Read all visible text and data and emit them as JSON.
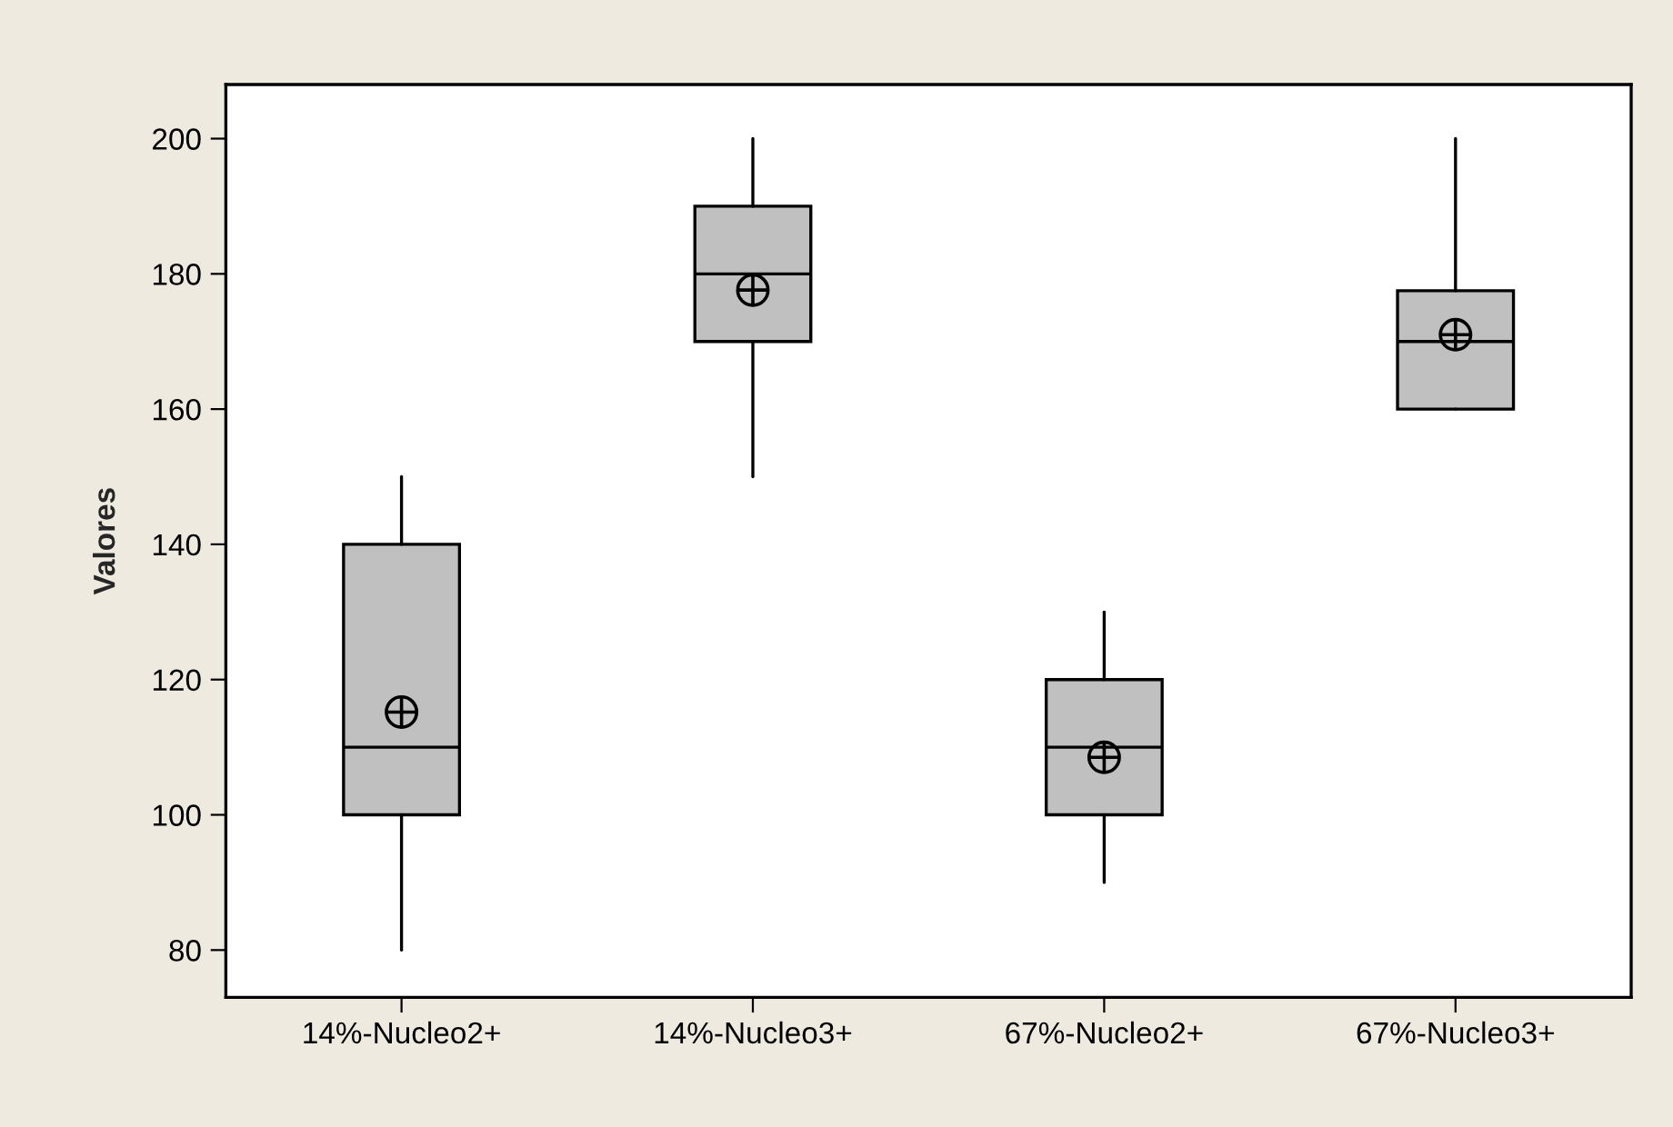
{
  "chart_data": {
    "type": "box",
    "ylabel": "Valores",
    "categories": [
      "14%-Nucleo2+",
      "14%-Nucleo3+",
      "67%-Nucleo2+",
      "67%-Nucleo3+"
    ],
    "boxes": [
      {
        "low": 80,
        "q1": 100,
        "median": 110,
        "q3": 140,
        "high": 150,
        "mean": 115.2
      },
      {
        "low": 150,
        "q1": 170,
        "median": 180,
        "q3": 190,
        "high": 200,
        "mean": 177.6
      },
      {
        "low": 90,
        "q1": 100,
        "median": 110,
        "q3": 120,
        "high": 130,
        "mean": 108.5
      },
      {
        "low": 160,
        "q1": 160,
        "median": 170,
        "q3": 177.5,
        "high": 200,
        "mean": 171
      }
    ],
    "color": "#c0c0c0",
    "ylim": [
      73,
      208
    ],
    "yticks": [
      80,
      100,
      120,
      140,
      160,
      180,
      200
    ],
    "grid": false
  }
}
